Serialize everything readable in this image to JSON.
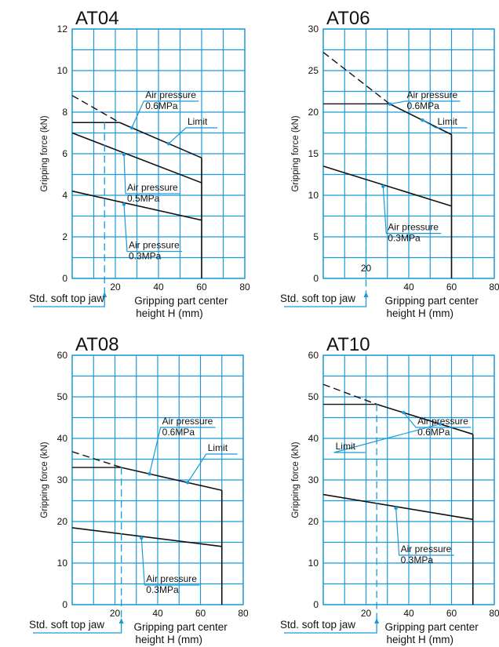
{
  "common": {
    "ylabel": "Gripping force (kN)",
    "xlabel_line1": "Gripping part center",
    "xlabel_line2": "height H (mm)",
    "std_jaw_label": "Std. soft top jaw",
    "limit_label": "Limit",
    "air_label": "Air pressure",
    "colors": {
      "grid": "#1a9bd7",
      "curve": "#111111",
      "text": "#111111"
    }
  },
  "chart_data": [
    {
      "type": "line",
      "title": "AT04",
      "xlim": [
        0,
        80
      ],
      "ylim": [
        0,
        12
      ],
      "xticks": [
        20,
        40,
        60,
        80
      ],
      "yticks": [
        0,
        2,
        4,
        6,
        8,
        10,
        12
      ],
      "x_minor_step": 10,
      "y_minor_step": 1,
      "limit_x": 60,
      "std_jaw_x": 15,
      "series": [
        {
          "pressure": "0.6MPa",
          "x": [
            0,
            22,
            60
          ],
          "y": [
            8.8,
            7.5,
            5.8
          ],
          "dashed_until": 22,
          "horizontal_at": 7.5
        },
        {
          "pressure": "0.5MPa",
          "x": [
            0,
            60
          ],
          "y": [
            7.0,
            4.6
          ]
        },
        {
          "pressure": "0.3MPa",
          "x": [
            0,
            60
          ],
          "y": [
            4.2,
            2.8
          ]
        }
      ],
      "extra_tick_label": ""
    },
    {
      "type": "line",
      "title": "AT06",
      "xlim": [
        0,
        80
      ],
      "ylim": [
        0,
        30
      ],
      "xticks": [
        40,
        60,
        80
      ],
      "yticks": [
        0,
        5,
        10,
        15,
        20,
        25,
        30
      ],
      "x_minor_step": 10,
      "y_minor_step": 2.5,
      "limit_x": 60,
      "std_jaw_x": 20,
      "series": [
        {
          "pressure": "0.6MPa",
          "x": [
            0,
            31,
            60
          ],
          "y": [
            27.2,
            21.0,
            17.3
          ],
          "dashed_until": 31,
          "horizontal_at": 21.0
        },
        {
          "pressure": "0.3MPa",
          "x": [
            0,
            60
          ],
          "y": [
            13.5,
            8.7
          ]
        }
      ],
      "extra_tick_label": "20"
    },
    {
      "type": "line",
      "title": "AT08",
      "xlim": [
        0,
        80
      ],
      "ylim": [
        0,
        60
      ],
      "xticks": [
        20,
        40,
        60,
        80
      ],
      "yticks": [
        0,
        10,
        20,
        30,
        40,
        50,
        60
      ],
      "x_minor_step": 10,
      "y_minor_step": 5,
      "limit_x": 70,
      "std_jaw_x": 23,
      "series": [
        {
          "pressure": "0.6MPa",
          "x": [
            0,
            23,
            70
          ],
          "y": [
            36.8,
            33.0,
            27.5
          ],
          "dashed_until": 23,
          "horizontal_at": 33.0
        },
        {
          "pressure": "0.3MPa",
          "x": [
            0,
            70
          ],
          "y": [
            18.5,
            14.0
          ]
        }
      ],
      "extra_tick_label": ""
    },
    {
      "type": "line",
      "title": "AT10",
      "xlim": [
        0,
        80
      ],
      "ylim": [
        0,
        60
      ],
      "xticks": [
        20,
        40,
        60,
        80
      ],
      "yticks": [
        0,
        10,
        20,
        30,
        40,
        50,
        60
      ],
      "x_minor_step": 10,
      "y_minor_step": 5,
      "limit_x": 70,
      "std_jaw_x": 25,
      "series": [
        {
          "pressure": "0.6MPa",
          "x": [
            0,
            25,
            70
          ],
          "y": [
            53.0,
            48.2,
            41.0
          ],
          "dashed_until": 25,
          "horizontal_at": 48.2
        },
        {
          "pressure": "0.3MPa",
          "x": [
            0,
            70
          ],
          "y": [
            26.5,
            20.5
          ]
        }
      ],
      "extra_tick_label": ""
    }
  ]
}
